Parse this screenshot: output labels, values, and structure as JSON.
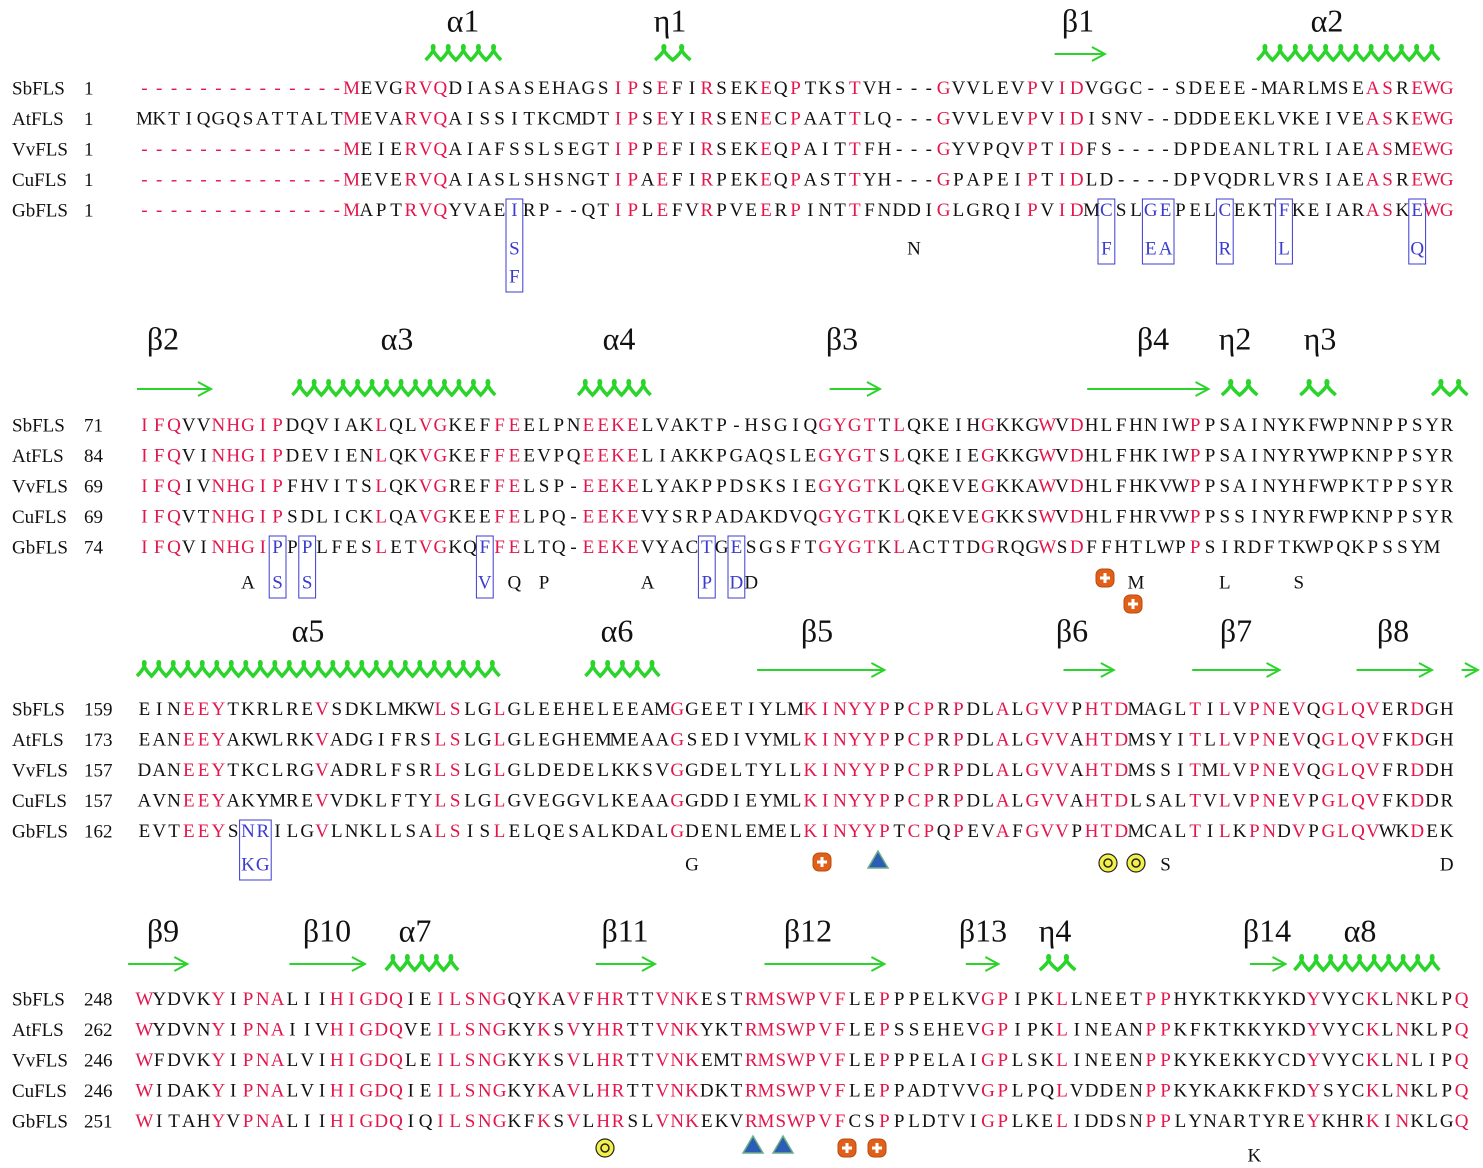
{
  "blocks": [
    {
      "structures": [
        "α1",
        "η1",
        "β1",
        "α2"
      ],
      "sequences": [
        {
          "name": "SbFLS",
          "start": 1,
          "residues": "--------------MEVGRVQDIASASEHAGSIPSEFIRSEKEQPTKSTVH---GVVLEVPVIDVGGC--SDEEE-MARLMSEASREWG"
        },
        {
          "name": "AtFLS",
          "start": 1,
          "residues": "MKTIQGQSATTALTMEVARVQAISSITKCMDTIPSEYIRSENECPAATTLQ---GVVLEVPVIDISNV--DDDEEKLVKEIVEASKEWG"
        },
        {
          "name": "VvFLS",
          "start": 1,
          "residues": "--------------MEIERVQAIAFSSLSEGTIPPEFIRSEKEQPAITTFH---GYVPQVPTIDFS----DPDEANLTRLIAEASMEWG"
        },
        {
          "name": "CuFLS",
          "start": 1,
          "residues": "--------------MEVERVQAIASLSHSNGTIPAEFIRPEKEQPASTTYH---GPAPEIPTIDLD----DPVQDRLVRSIAEASREWG"
        },
        {
          "name": "GbFLS",
          "start": 1,
          "residues": "--------------MAPTRVQYVAEIRP--QTIPLEFVRPVEERPINTTFNDDIGLGRQIPVIDMCSLGEPELCEKTFKEIARASKEWG"
        }
      ],
      "annotations": [
        [
          "S",
          "F"
        ],
        [
          "N"
        ],
        [
          "F"
        ],
        [
          "EA"
        ],
        [
          "R"
        ],
        [
          "L"
        ],
        [
          "Q"
        ]
      ]
    },
    {
      "structures": [
        "β2",
        "α3",
        "α4",
        "β3",
        "β4",
        "η2",
        "η3"
      ],
      "sequences": [
        {
          "name": "SbFLS",
          "start": 71,
          "residues": "IFQVVNHGIPDQVIAKLQLVGKEFFEELPNEEKELVAKTP-HSGIQGYGTTLQKEIHGKKGWVDHLFHNIWPPSAINYKFWPNNPPSYR"
        },
        {
          "name": "AtFLS",
          "start": 84,
          "residues": "IFQVINHGIPDEVIENLQKVGKEFFEEVPQEEKELIAKKPGAQSLEGYGTSLQKEIEGKKGWVDHLFHKIWPPSAINYRYWPKNPPSYR"
        },
        {
          "name": "VvFLS",
          "start": 69,
          "residues": "IFQIVNHGIPFHVITSLQKVGREFFELSP-EEKELYAKPPDSKSIEGYGTKLQKEVEGKKAWVDHLFHKVWPPSAINYHFWPKTPPSYR"
        },
        {
          "name": "CuFLS",
          "start": 69,
          "residues": "IFQVTNHGIPSDLICKLQAVGKEEFELPQ-EEKEVYSRPADAKDVQGYGTKLQKEVEGKKSWVDHLFHRVWPPSSINYRFWPKNPPSYR"
        },
        {
          "name": "GbFLS",
          "start": 74,
          "residues": "IFQVINHGIPPPLFESLETVGKQFFELTQ-EEKEVYACTGESGSFTGYGTKLACTTDGRQGWSDFFHTLWPPSIRDFTKWPQKPSSYM"
        }
      ],
      "annotations": [
        [
          "A"
        ],
        [
          "S"
        ],
        [
          "S"
        ],
        [
          "V"
        ],
        [
          "Q"
        ],
        [
          "P"
        ],
        [
          "A"
        ],
        [
          "P"
        ],
        [
          "D"
        ],
        [
          "D"
        ],
        [
          "M"
        ],
        [
          "L"
        ],
        [
          "S"
        ]
      ]
    },
    {
      "structures": [
        "α5",
        "α6",
        "β5",
        "β6",
        "β7",
        "β8"
      ],
      "sequences": [
        {
          "name": "SbFLS",
          "start": 159,
          "residues": "EINEEYTKRLREVSDKLMKWLSLGLGLEEHELEEAMGGEETIYLMKINYYPPCPRPDLALGVVPHTDMAGLTILVPNEVQGLQVERDGH"
        },
        {
          "name": "AtFLS",
          "start": 173,
          "residues": "EANEEYAKWLRKVADGIFRSLSLGLGLEGHEMMEAAGSEDIVYMLKINYYPPCPRPDLALGVVAHTDMSYITLLVPNEVQGLQVFKDGH"
        },
        {
          "name": "VvFLS",
          "start": 157,
          "residues": "DANEEYTKCLRGVADRLFSRLSLGLGLDEDELKKSVGGDELTYLLKINYYPPCPRPDLALGVVAHTDMSSITMLVPNEVQGLQVFRDDH"
        },
        {
          "name": "CuFLS",
          "start": 157,
          "residues": "AVNEEYAKYMREVVDKLFTYLSLGLGVEGGVLKEAAGGDDIEYMLKINYYPPCPRPDLALGVVAHTDLSALTVLVPNEVPGLQVFKDDR"
        },
        {
          "name": "GbFLS",
          "start": 162,
          "residues": "EVTEEYSNRILGVLNKLLSALSISLELQESALKDALGDENLEMELKINYYPTCPQPEVAFGVVPHTDMCALTILKPNDVPGLQVWKDEK"
        }
      ],
      "annotations": [
        [
          "KG"
        ],
        [
          "G"
        ],
        [
          "S"
        ],
        [
          "D"
        ]
      ]
    },
    {
      "structures": [
        "β9",
        "β10",
        "α7",
        "β11",
        "β12",
        "β13",
        "η4",
        "β14",
        "α8"
      ],
      "sequences": [
        {
          "name": "SbFLS",
          "start": 248,
          "residues": "WYDVKYIPNALIIHIGDQIEILSNGQYKAVFHRTTVNKESTRMSWPVFLEPPPELKVGPIPKLLNEETPPHYKTKKYKDYVYCKLNKLPQ"
        },
        {
          "name": "AtFLS",
          "start": 262,
          "residues": "WYDVNYIPNAIIVHIGDQVEILSNGKYKSVYHRTTVNKYKTRMSWPVFLEPSSEHEVGPIPKLINEANPPKFKTKKYKDYVYCKLNKLPQ"
        },
        {
          "name": "VvFLS",
          "start": 246,
          "residues": "WFDVKYIPNALVIHIGDQLEILSNGKYKSVLHRTTVNKEMTRMSWPVFLEPPPELAIGPLSKLINEENPPKYKEKKYCDYVYCKLNLIPQ"
        },
        {
          "name": "CuFLS",
          "start": 246,
          "residues": "WIDAKYIPNALVIHIGDQIEILSNGKYKAVLHRTTVNKDKTRMSWPVFLEPPADTVVGPLPQLVDDENPPKYKAKKFKDYSYCKLNKLPQ"
        },
        {
          "name": "GbFLS",
          "start": 251,
          "residues": "WITAHYVPNALIIHIGDQIQILSNGKFKSVLHRSLVNKEKVRMSWPVFCSPPLDTVIGPLKELIDDSNPPLYNARTYREYKHRKINKLGQ"
        }
      ],
      "annotations": [
        [
          "K"
        ]
      ]
    }
  ]
}
